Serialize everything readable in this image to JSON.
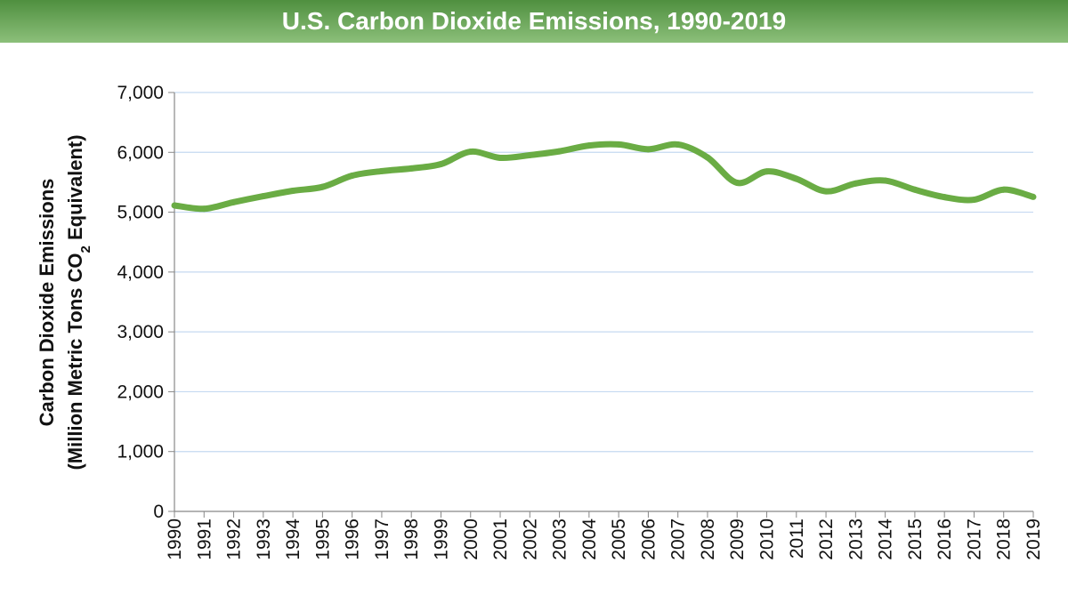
{
  "chart_data": {
    "type": "line",
    "title": "U.S. Carbon Dioxide Emissions, 1990-2019",
    "xlabel": "",
    "ylabel_line1": "Carbon Dioxide Emissions",
    "ylabel_line2_pre": "(Million Metric Tons CO",
    "ylabel_line2_sub": "2",
    "ylabel_line2_post": " Equivalent)",
    "ylim": [
      0,
      7000
    ],
    "yticks": [
      0,
      1000,
      2000,
      3000,
      4000,
      5000,
      6000,
      7000
    ],
    "ytick_labels": [
      "0",
      "1,000",
      "2,000",
      "3,000",
      "4,000",
      "5,000",
      "6,000",
      "7,000"
    ],
    "grid": true,
    "line_color": "#6aac44",
    "grid_color": "#c5d9f1",
    "x": [
      1990,
      1991,
      1992,
      1993,
      1994,
      1995,
      1996,
      1997,
      1998,
      1999,
      2000,
      2001,
      2002,
      2003,
      2004,
      2005,
      2006,
      2007,
      2008,
      2009,
      2010,
      2011,
      2012,
      2013,
      2014,
      2015,
      2016,
      2017,
      2018,
      2019
    ],
    "values": [
      5113,
      5057,
      5167,
      5267,
      5358,
      5422,
      5610,
      5686,
      5731,
      5803,
      6011,
      5908,
      5953,
      6017,
      6114,
      6132,
      6051,
      6131,
      5915,
      5491,
      5681,
      5558,
      5349,
      5480,
      5528,
      5376,
      5252,
      5208,
      5377,
      5255
    ]
  }
}
